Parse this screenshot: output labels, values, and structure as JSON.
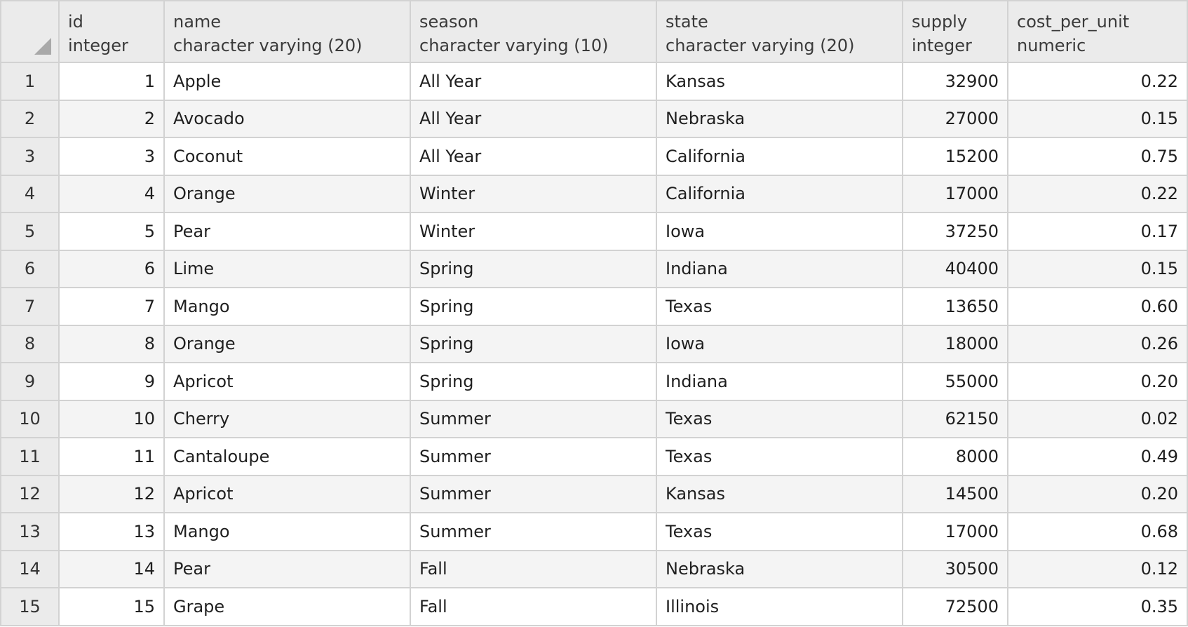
{
  "columns": [
    {
      "name": "id",
      "type": "integer"
    },
    {
      "name": "name",
      "type": "character varying (20)"
    },
    {
      "name": "season",
      "type": "character varying (10)"
    },
    {
      "name": "state",
      "type": "character varying (20)"
    },
    {
      "name": "supply",
      "type": "integer"
    },
    {
      "name": "cost_per_unit",
      "type": "numeric"
    }
  ],
  "rows": [
    {
      "rownum": "1",
      "id": "1",
      "name": "Apple",
      "season": "All Year",
      "state": "Kansas",
      "supply": "32900",
      "cost_per_unit": "0.22"
    },
    {
      "rownum": "2",
      "id": "2",
      "name": "Avocado",
      "season": "All Year",
      "state": "Nebraska",
      "supply": "27000",
      "cost_per_unit": "0.15"
    },
    {
      "rownum": "3",
      "id": "3",
      "name": "Coconut",
      "season": "All Year",
      "state": "California",
      "supply": "15200",
      "cost_per_unit": "0.75"
    },
    {
      "rownum": "4",
      "id": "4",
      "name": "Orange",
      "season": "Winter",
      "state": "California",
      "supply": "17000",
      "cost_per_unit": "0.22"
    },
    {
      "rownum": "5",
      "id": "5",
      "name": "Pear",
      "season": "Winter",
      "state": "Iowa",
      "supply": "37250",
      "cost_per_unit": "0.17"
    },
    {
      "rownum": "6",
      "id": "6",
      "name": "Lime",
      "season": "Spring",
      "state": "Indiana",
      "supply": "40400",
      "cost_per_unit": "0.15"
    },
    {
      "rownum": "7",
      "id": "7",
      "name": "Mango",
      "season": "Spring",
      "state": "Texas",
      "supply": "13650",
      "cost_per_unit": "0.60"
    },
    {
      "rownum": "8",
      "id": "8",
      "name": "Orange",
      "season": "Spring",
      "state": "Iowa",
      "supply": "18000",
      "cost_per_unit": "0.26"
    },
    {
      "rownum": "9",
      "id": "9",
      "name": "Apricot",
      "season": "Spring",
      "state": "Indiana",
      "supply": "55000",
      "cost_per_unit": "0.20"
    },
    {
      "rownum": "10",
      "id": "10",
      "name": "Cherry",
      "season": "Summer",
      "state": "Texas",
      "supply": "62150",
      "cost_per_unit": "0.02"
    },
    {
      "rownum": "11",
      "id": "11",
      "name": "Cantaloupe",
      "season": "Summer",
      "state": "Texas",
      "supply": "8000",
      "cost_per_unit": "0.49"
    },
    {
      "rownum": "12",
      "id": "12",
      "name": "Apricot",
      "season": "Summer",
      "state": "Kansas",
      "supply": "14500",
      "cost_per_unit": "0.20"
    },
    {
      "rownum": "13",
      "id": "13",
      "name": "Mango",
      "season": "Summer",
      "state": "Texas",
      "supply": "17000",
      "cost_per_unit": "0.68"
    },
    {
      "rownum": "14",
      "id": "14",
      "name": "Pear",
      "season": "Fall",
      "state": "Nebraska",
      "supply": "30500",
      "cost_per_unit": "0.12"
    },
    {
      "rownum": "15",
      "id": "15",
      "name": "Grape",
      "season": "Fall",
      "state": "Illinois",
      "supply": "72500",
      "cost_per_unit": "0.35"
    }
  ]
}
